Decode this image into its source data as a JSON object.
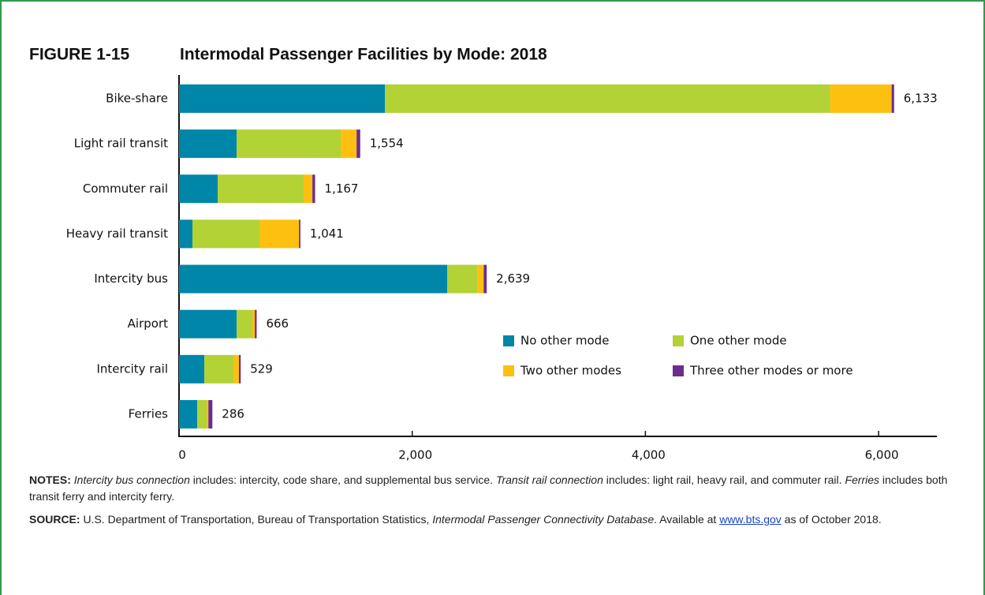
{
  "chart_data": {
    "type": "stacked-bar-horizontal",
    "figure_number": "FIGURE 1-15",
    "title": "Intermodal Passenger Facilities by Mode: 2018",
    "categories": [
      "Bike-share",
      "Light rail transit",
      "Commuter rail",
      "Heavy rail transit",
      "Intercity bus",
      "Airport",
      "Intercity rail",
      "Ferries"
    ],
    "series": [
      {
        "name": "No other mode",
        "color": "#0086a8",
        "values": [
          1766,
          494,
          332,
          115,
          2301,
          494,
          217,
          156
        ]
      },
      {
        "name": "One other mode",
        "color": "#b2d235",
        "values": [
          3818,
          893,
          737,
          575,
          257,
          135,
          250,
          81
        ]
      },
      {
        "name": "Two other modes",
        "color": "#fdc010",
        "values": [
          528,
          136,
          75,
          339,
          55,
          21,
          47,
          15
        ]
      },
      {
        "name": "Three other modes or more",
        "color": "#6b2d8f",
        "values": [
          21,
          31,
          23,
          12,
          26,
          16,
          15,
          34
        ]
      }
    ],
    "totals": [
      6133,
      1554,
      1167,
      1041,
      2639,
      666,
      529,
      286
    ],
    "total_labels": [
      "6,133",
      "1,554",
      "1,167",
      "1,041",
      "2,639",
      "666",
      "529",
      "286"
    ],
    "xlim": [
      0,
      6500
    ],
    "xticks": [
      0,
      {
        "value": 2000,
        "label": "2,000"
      },
      {
        "value": 4000,
        "label": "4,000"
      },
      {
        "value": 6000,
        "label": "6,000"
      }
    ],
    "notes": {
      "label": "NOTES:",
      "runs": [
        "Intercity bus connection",
        " includes: intercity, code share, and supplemental bus service. ",
        "Transit rail connection",
        " includes: light rail, heavy rail, and commuter rail. ",
        "Ferries",
        " includes both transit ferry and intercity ferry."
      ]
    },
    "source": {
      "label": "SOURCE:",
      "runs": [
        " U.S. Department of Transportation, Bureau of Transportation Statistics, ",
        "Intermodal Passenger Connectivity Database",
        ". Available at ",
        "www.bts.gov",
        " as of October 2018."
      ]
    }
  }
}
